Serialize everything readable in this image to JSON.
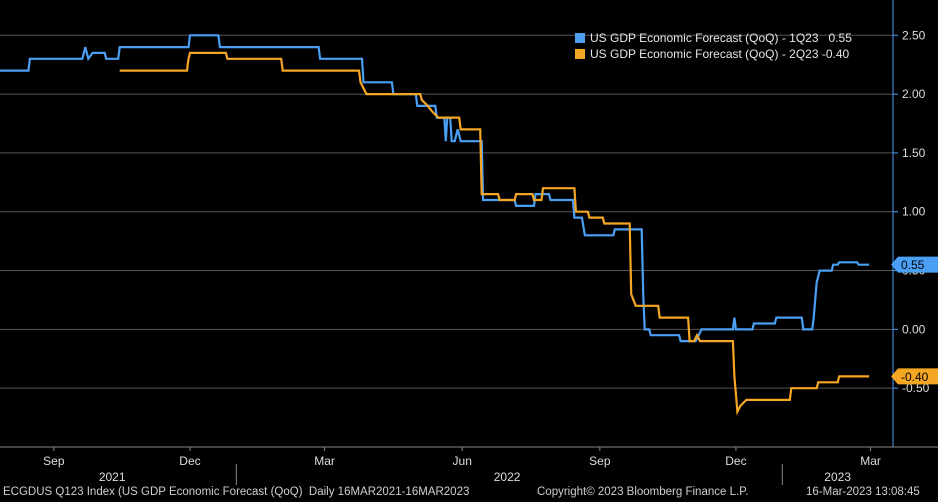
{
  "chart_data": {
    "type": "line",
    "title": "",
    "xlabel": "",
    "ylabel": "",
    "ylim": [
      -1.0,
      2.8
    ],
    "y_ticks": [
      "2.50",
      "2.00",
      "1.50",
      "1.00",
      "0.50",
      "0.00",
      "-0.50"
    ],
    "y_tick_values": [
      2.5,
      2.0,
      1.5,
      1.0,
      0.5,
      0.0,
      -0.5
    ],
    "x_range": [
      "2021-07-27",
      "2023-03-16"
    ],
    "x_month_ticks": [
      {
        "label": "Sep",
        "date": "2021-09-01"
      },
      {
        "label": "Dec",
        "date": "2021-12-01"
      },
      {
        "label": "Mar",
        "date": "2022-03-01"
      },
      {
        "label": "Jun",
        "date": "2022-06-01"
      },
      {
        "label": "Sep",
        "date": "2022-09-01"
      },
      {
        "label": "Dec",
        "date": "2022-12-01"
      },
      {
        "label": "Mar",
        "date": "2023-03-01"
      }
    ],
    "x_year_labels": [
      {
        "label": "2021",
        "date": "2021-10-10"
      },
      {
        "label": "2022",
        "date": "2022-07-01"
      },
      {
        "label": "2023",
        "date": "2023-02-07"
      }
    ],
    "x_year_boundaries": [
      "2022-01-01",
      "2023-01-01"
    ],
    "legend_position": "top-right",
    "grid": true,
    "series": [
      {
        "name": "US GDP Economic Forecast (QoQ) - 1Q23",
        "last_value": "0.55",
        "color": "#4a9ff5",
        "points": [
          [
            "2021-07-27",
            2.2
          ],
          [
            "2021-08-15",
            2.2
          ],
          [
            "2021-08-16",
            2.3
          ],
          [
            "2021-09-20",
            2.3
          ],
          [
            "2021-09-22",
            2.4
          ],
          [
            "2021-09-24",
            2.3
          ],
          [
            "2021-09-27",
            2.35
          ],
          [
            "2021-10-05",
            2.35
          ],
          [
            "2021-10-06",
            2.3
          ],
          [
            "2021-10-14",
            2.3
          ],
          [
            "2021-10-15",
            2.4
          ],
          [
            "2021-11-30",
            2.4
          ],
          [
            "2021-12-01",
            2.5
          ],
          [
            "2021-12-20",
            2.5
          ],
          [
            "2021-12-21",
            2.4
          ],
          [
            "2022-02-25",
            2.4
          ],
          [
            "2022-02-26",
            2.3
          ],
          [
            "2022-03-26",
            2.3
          ],
          [
            "2022-03-27",
            2.1
          ],
          [
            "2022-04-15",
            2.1
          ],
          [
            "2022-04-16",
            2.0
          ],
          [
            "2022-05-01",
            2.0
          ],
          [
            "2022-05-02",
            1.9
          ],
          [
            "2022-05-14",
            1.9
          ],
          [
            "2022-05-15",
            1.8
          ],
          [
            "2022-05-20",
            1.8
          ],
          [
            "2022-05-21",
            1.6
          ],
          [
            "2022-05-22",
            1.8
          ],
          [
            "2022-05-24",
            1.8
          ],
          [
            "2022-05-25",
            1.6
          ],
          [
            "2022-05-27",
            1.6
          ],
          [
            "2022-05-29",
            1.7
          ],
          [
            "2022-05-31",
            1.6
          ],
          [
            "2022-06-14",
            1.6
          ],
          [
            "2022-06-15",
            1.1
          ],
          [
            "2022-07-06",
            1.1
          ],
          [
            "2022-07-07",
            1.05
          ],
          [
            "2022-07-19",
            1.05
          ],
          [
            "2022-07-20",
            1.15
          ],
          [
            "2022-07-29",
            1.15
          ],
          [
            "2022-07-30",
            1.1
          ],
          [
            "2022-08-14",
            1.1
          ],
          [
            "2022-08-15",
            0.95
          ],
          [
            "2022-08-20",
            0.95
          ],
          [
            "2022-08-22",
            0.8
          ],
          [
            "2022-09-10",
            0.8
          ],
          [
            "2022-09-11",
            0.85
          ],
          [
            "2022-09-29",
            0.85
          ],
          [
            "2022-09-30",
            0.3
          ],
          [
            "2022-10-01",
            0.0
          ],
          [
            "2022-10-04",
            0.0
          ],
          [
            "2022-10-05",
            -0.05
          ],
          [
            "2022-10-24",
            -0.05
          ],
          [
            "2022-10-25",
            -0.1
          ],
          [
            "2022-11-04",
            -0.1
          ],
          [
            "2022-11-05",
            -0.08
          ],
          [
            "2022-11-08",
            0.0
          ],
          [
            "2022-11-29",
            0.0
          ],
          [
            "2022-11-30",
            0.1
          ],
          [
            "2022-12-01",
            0.0
          ],
          [
            "2022-12-12",
            0.0
          ],
          [
            "2022-12-13",
            0.05
          ],
          [
            "2022-12-27",
            0.05
          ],
          [
            "2022-12-28",
            0.1
          ],
          [
            "2023-01-14",
            0.1
          ],
          [
            "2023-01-15",
            0.0
          ],
          [
            "2023-01-21",
            0.0
          ],
          [
            "2023-01-22",
            0.1
          ],
          [
            "2023-01-24",
            0.4
          ],
          [
            "2023-01-26",
            0.5
          ],
          [
            "2023-02-03",
            0.5
          ],
          [
            "2023-02-04",
            0.55
          ],
          [
            "2023-02-07",
            0.55
          ],
          [
            "2023-02-08",
            0.57
          ],
          [
            "2023-02-20",
            0.57
          ],
          [
            "2023-02-21",
            0.55
          ],
          [
            "2023-02-28",
            0.55
          ]
        ]
      },
      {
        "name": "US GDP Economic Forecast (QoQ) - 2Q23",
        "last_value": "-0.40",
        "color": "#f5a623",
        "points": [
          [
            "2021-10-15",
            2.2
          ],
          [
            "2021-11-29",
            2.2
          ],
          [
            "2021-11-30",
            2.3
          ],
          [
            "2021-12-01",
            2.35
          ],
          [
            "2021-12-25",
            2.35
          ],
          [
            "2021-12-26",
            2.3
          ],
          [
            "2022-01-31",
            2.3
          ],
          [
            "2022-02-01",
            2.2
          ],
          [
            "2022-03-24",
            2.2
          ],
          [
            "2022-03-25",
            2.1
          ],
          [
            "2022-03-29",
            2.0
          ],
          [
            "2022-05-04",
            2.0
          ],
          [
            "2022-05-05",
            1.95
          ],
          [
            "2022-05-09",
            1.9
          ],
          [
            "2022-05-12",
            1.85
          ],
          [
            "2022-05-16",
            1.8
          ],
          [
            "2022-05-30",
            1.8
          ],
          [
            "2022-05-31",
            1.7
          ],
          [
            "2022-06-13",
            1.7
          ],
          [
            "2022-06-14",
            1.15
          ],
          [
            "2022-06-25",
            1.15
          ],
          [
            "2022-06-26",
            1.1
          ],
          [
            "2022-07-06",
            1.1
          ],
          [
            "2022-07-07",
            1.15
          ],
          [
            "2022-07-18",
            1.15
          ],
          [
            "2022-07-19",
            1.1
          ],
          [
            "2022-07-24",
            1.1
          ],
          [
            "2022-07-25",
            1.2
          ],
          [
            "2022-08-15",
            1.2
          ],
          [
            "2022-08-16",
            1.0
          ],
          [
            "2022-08-24",
            1.0
          ],
          [
            "2022-08-25",
            0.95
          ],
          [
            "2022-09-03",
            0.95
          ],
          [
            "2022-09-04",
            0.9
          ],
          [
            "2022-09-21",
            0.9
          ],
          [
            "2022-09-22",
            0.3
          ],
          [
            "2022-09-25",
            0.2
          ],
          [
            "2022-10-10",
            0.2
          ],
          [
            "2022-10-11",
            0.1
          ],
          [
            "2022-10-30",
            0.1
          ],
          [
            "2022-10-31",
            -0.1
          ],
          [
            "2022-11-03",
            -0.1
          ],
          [
            "2022-11-05",
            -0.05
          ],
          [
            "2022-11-07",
            -0.1
          ],
          [
            "2022-11-29",
            -0.1
          ],
          [
            "2022-11-30",
            -0.4
          ],
          [
            "2022-12-02",
            -0.7
          ],
          [
            "2022-12-04",
            -0.65
          ],
          [
            "2022-12-08",
            -0.6
          ],
          [
            "2023-01-06",
            -0.6
          ],
          [
            "2023-01-07",
            -0.5
          ],
          [
            "2023-01-24",
            -0.5
          ],
          [
            "2023-01-25",
            -0.45
          ],
          [
            "2023-02-07",
            -0.45
          ],
          [
            "2023-02-08",
            -0.4
          ],
          [
            "2023-02-28",
            -0.4
          ]
        ]
      }
    ]
  },
  "footer": {
    "index_text": "ECGDUS Q123 Index (US GDP Economic Forecast (QoQ)  Daily 16MAR2021-16MAR2023",
    "copyright": "Copyright© 2023 Bloomberg Finance L.P.",
    "timestamp": "16-Mar-2023 13:08:45"
  }
}
